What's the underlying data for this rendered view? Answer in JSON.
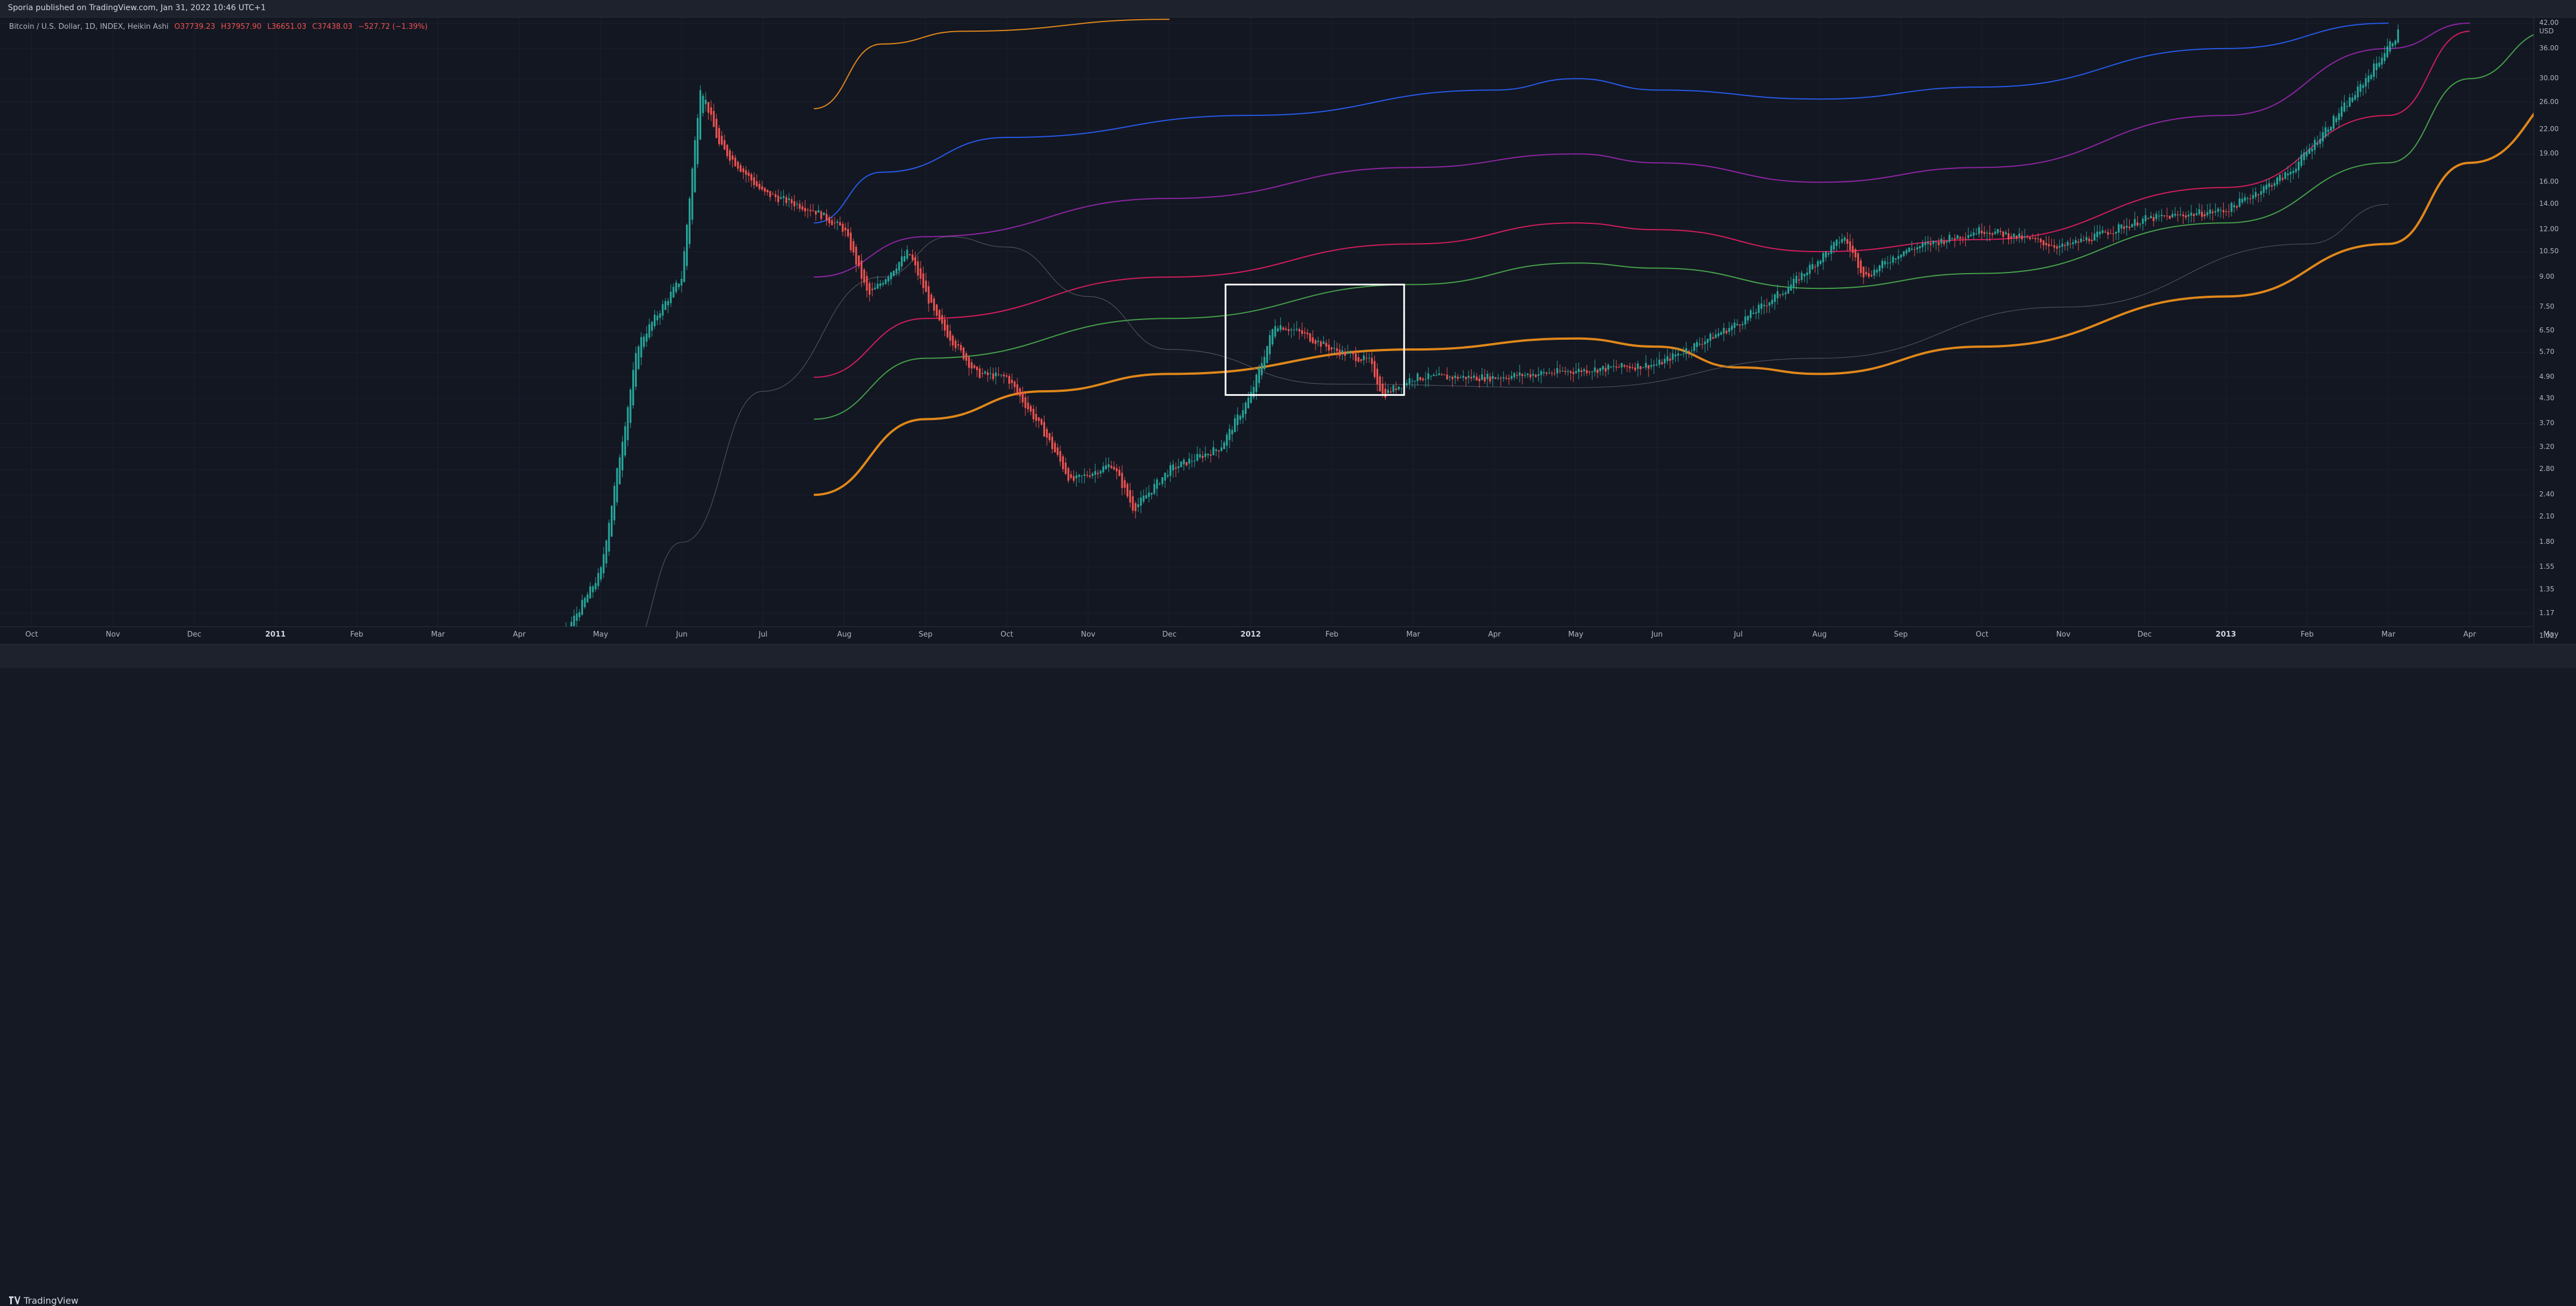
{
  "header": {
    "published_text": "Sporia published on TradingView.com, Jan 31, 2022 10:46 UTC+1"
  },
  "legend": {
    "symbol": "Bitcoin / U.S. Dollar, 1D, INDEX, Heikin Ashi",
    "open": "O37739.23",
    "high": "H37957.90",
    "low": "L36651.03",
    "close": "C37438.03",
    "change": "−527.72 (−1.39%)"
  },
  "price_axis": {
    "currency": "USD",
    "labels": [
      "42.00",
      "36.00",
      "30.00",
      "26.00",
      "22.00",
      "19.00",
      "16.00",
      "14.00",
      "12.00",
      "10.50",
      "9.00",
      "7.50",
      "6.50",
      "5.70",
      "4.90",
      "4.30",
      "3.70",
      "3.20",
      "2.80",
      "2.40",
      "2.10",
      "1.80",
      "1.55",
      "1.35",
      "1.17",
      "1.02"
    ]
  },
  "time_axis": {
    "labels": [
      {
        "text": "Oct",
        "year": false
      },
      {
        "text": "Nov",
        "year": false
      },
      {
        "text": "Dec",
        "year": false
      },
      {
        "text": "2011",
        "year": true
      },
      {
        "text": "Feb",
        "year": false
      },
      {
        "text": "Mar",
        "year": false
      },
      {
        "text": "Apr",
        "year": false
      },
      {
        "text": "May",
        "year": false
      },
      {
        "text": "Jun",
        "year": false
      },
      {
        "text": "Jul",
        "year": false
      },
      {
        "text": "Aug",
        "year": false
      },
      {
        "text": "Sep",
        "year": false
      },
      {
        "text": "Oct",
        "year": false
      },
      {
        "text": "Nov",
        "year": false
      },
      {
        "text": "Dec",
        "year": false
      },
      {
        "text": "2012",
        "year": true
      },
      {
        "text": "Feb",
        "year": false
      },
      {
        "text": "Mar",
        "year": false
      },
      {
        "text": "Apr",
        "year": false
      },
      {
        "text": "May",
        "year": false
      },
      {
        "text": "Jun",
        "year": false
      },
      {
        "text": "Jul",
        "year": false
      },
      {
        "text": "Aug",
        "year": false
      },
      {
        "text": "Sep",
        "year": false
      },
      {
        "text": "Oct",
        "year": false
      },
      {
        "text": "Nov",
        "year": false
      },
      {
        "text": "Dec",
        "year": false
      },
      {
        "text": "2013",
        "year": true
      },
      {
        "text": "Feb",
        "year": false
      },
      {
        "text": "Mar",
        "year": false
      },
      {
        "text": "Apr",
        "year": false
      },
      {
        "text": "May",
        "year": false
      }
    ]
  },
  "footer": {
    "brand": "TradingView",
    "brand_icon": "tradingview-logo-icon"
  },
  "colors": {
    "background": "#131722",
    "candle_up": "#26a69a",
    "candle_down": "#ef5350",
    "band_orange": "#f7931a",
    "band_blue": "#2962ff",
    "band_purple": "#9c27b0",
    "band_red": "#e91e63",
    "band_green": "#4caf50",
    "band_gray": "#5d606b"
  },
  "chart_data": {
    "type": "candlestick",
    "series": [
      {
        "name": "Bitcoin / U.S. Dollar, 1D, INDEX, Heikin Ashi",
        "style": "heikin-ashi"
      }
    ],
    "price_scale": "log",
    "y_range": [
      1.0,
      42.0
    ],
    "x_range": [
      "2010-10",
      "2013-05"
    ],
    "price_path": [
      [
        "2011-02-20",
        1.0
      ],
      [
        "2011-03-01",
        0.95
      ],
      [
        "2011-04-01",
        0.78
      ],
      [
        "2011-04-15",
        0.95
      ],
      [
        "2011-05-01",
        1.5
      ],
      [
        "2011-05-15",
        6.0
      ],
      [
        "2011-06-01",
        9.0
      ],
      [
        "2011-06-08",
        29.0
      ],
      [
        "2011-06-15",
        20.0
      ],
      [
        "2011-07-01",
        15.0
      ],
      [
        "2011-07-20",
        13.5
      ],
      [
        "2011-08-01",
        12.0
      ],
      [
        "2011-08-10",
        8.0
      ],
      [
        "2011-08-25",
        10.5
      ],
      [
        "2011-09-05",
        7.0
      ],
      [
        "2011-09-20",
        5.0
      ],
      [
        "2011-10-01",
        4.9
      ],
      [
        "2011-10-15",
        3.5
      ],
      [
        "2011-10-25",
        2.6
      ],
      [
        "2011-11-10",
        2.9
      ],
      [
        "2011-11-18",
        2.2
      ],
      [
        "2011-12-01",
        2.8
      ],
      [
        "2011-12-20",
        3.2
      ],
      [
        "2012-01-01",
        4.4
      ],
      [
        "2012-01-10",
        6.8
      ],
      [
        "2012-01-20",
        6.4
      ],
      [
        "2012-02-01",
        5.8
      ],
      [
        "2012-02-15",
        5.4
      ],
      [
        "2012-02-20",
        4.4
      ],
      [
        "2012-03-01",
        4.9
      ],
      [
        "2012-04-01",
        4.9
      ],
      [
        "2012-05-01",
        5.1
      ],
      [
        "2012-06-01",
        5.3
      ],
      [
        "2012-07-01",
        6.8
      ],
      [
        "2012-07-20",
        8.5
      ],
      [
        "2012-08-10",
        11.5
      ],
      [
        "2012-08-18",
        9.0
      ],
      [
        "2012-09-01",
        10.5
      ],
      [
        "2012-10-01",
        12.0
      ],
      [
        "2012-11-01",
        10.8
      ],
      [
        "2012-12-01",
        12.8
      ],
      [
        "2013-01-01",
        13.5
      ],
      [
        "2013-01-25",
        17.0
      ],
      [
        "2013-02-20",
        28.0
      ],
      [
        "2013-03-05",
        40.0
      ]
    ],
    "bands": [
      {
        "color": "#f7931a",
        "points": [
          [
            "2011-07-20",
            25.0
          ],
          [
            "2011-08-15",
            37.0
          ],
          [
            "2011-09-15",
            40.0
          ],
          [
            "2011-12-01",
            43.0
          ]
        ]
      },
      {
        "color": "#2962ff",
        "points": [
          [
            "2011-07-20",
            12.5
          ],
          [
            "2011-08-15",
            17.0
          ],
          [
            "2011-10-01",
            21.0
          ],
          [
            "2012-01-01",
            24.0
          ],
          [
            "2012-04-01",
            28.0
          ],
          [
            "2012-05-01",
            30.0
          ],
          [
            "2012-06-01",
            28.0
          ],
          [
            "2012-08-01",
            26.5
          ],
          [
            "2012-10-01",
            28.5
          ],
          [
            "2013-01-01",
            36.0
          ],
          [
            "2013-03-01",
            42.0
          ]
        ]
      },
      {
        "color": "#9c27b0",
        "points": [
          [
            "2011-07-20",
            9.0
          ],
          [
            "2011-09-01",
            11.5
          ],
          [
            "2011-12-01",
            14.5
          ],
          [
            "2012-03-01",
            17.5
          ],
          [
            "2012-05-01",
            19.0
          ],
          [
            "2012-06-01",
            18.0
          ],
          [
            "2012-08-01",
            16.0
          ],
          [
            "2012-10-01",
            17.5
          ],
          [
            "2013-01-01",
            24.0
          ],
          [
            "2013-03-01",
            36.0
          ],
          [
            "2013-04-01",
            42.0
          ]
        ]
      },
      {
        "color": "#e91e63",
        "points": [
          [
            "2011-07-20",
            4.9
          ],
          [
            "2011-09-01",
            7.0
          ],
          [
            "2011-12-01",
            9.0
          ],
          [
            "2012-03-01",
            11.0
          ],
          [
            "2012-05-01",
            12.5
          ],
          [
            "2012-06-01",
            12.0
          ],
          [
            "2012-08-01",
            10.5
          ],
          [
            "2012-10-01",
            11.3
          ],
          [
            "2013-01-01",
            15.5
          ],
          [
            "2013-03-01",
            24.0
          ],
          [
            "2013-04-01",
            40.0
          ]
        ]
      },
      {
        "color": "#4caf50",
        "points": [
          [
            "2011-07-20",
            3.8
          ],
          [
            "2011-09-01",
            5.5
          ],
          [
            "2011-12-01",
            7.0
          ],
          [
            "2012-03-01",
            8.6
          ],
          [
            "2012-05-01",
            9.8
          ],
          [
            "2012-06-01",
            9.5
          ],
          [
            "2012-08-01",
            8.4
          ],
          [
            "2012-10-01",
            9.2
          ],
          [
            "2013-01-01",
            12.5
          ],
          [
            "2013-03-01",
            18.0
          ],
          [
            "2013-04-01",
            30.0
          ],
          [
            "2013-05-01",
            40.0
          ]
        ]
      },
      {
        "color": "#f7931a",
        "points": [
          [
            "2011-07-20",
            2.4
          ],
          [
            "2011-09-01",
            3.8
          ],
          [
            "2011-10-15",
            4.5
          ],
          [
            "2011-12-01",
            5.0
          ],
          [
            "2012-03-01",
            5.8
          ],
          [
            "2012-05-01",
            6.2
          ],
          [
            "2012-06-01",
            5.9
          ],
          [
            "2012-07-01",
            5.2
          ],
          [
            "2012-08-01",
            5.0
          ],
          [
            "2012-10-01",
            5.9
          ],
          [
            "2013-01-01",
            8.0
          ],
          [
            "2013-03-01",
            11.0
          ],
          [
            "2013-04-01",
            18.0
          ],
          [
            "2013-05-15",
            30.0
          ]
        ]
      },
      {
        "color": "#5d606b",
        "points": [
          [
            "2011-05-10",
            0.9
          ],
          [
            "2011-06-01",
            1.8
          ],
          [
            "2011-07-01",
            4.5
          ],
          [
            "2011-08-15",
            9.0
          ],
          [
            "2011-09-10",
            11.5
          ],
          [
            "2011-10-01",
            10.8
          ],
          [
            "2011-11-01",
            8.0
          ],
          [
            "2011-12-01",
            5.8
          ],
          [
            "2012-02-01",
            4.7
          ],
          [
            "2012-05-01",
            4.6
          ],
          [
            "2012-08-01",
            5.5
          ],
          [
            "2012-11-01",
            7.5
          ],
          [
            "2013-02-01",
            11.0
          ],
          [
            "2013-03-01",
            14.0
          ]
        ]
      }
    ],
    "annotations": [
      {
        "type": "rectangle",
        "color": "#ffffff",
        "from": [
          "2011-12-22",
          8.6
        ],
        "to": [
          "2012-02-28",
          4.4
        ]
      }
    ]
  }
}
